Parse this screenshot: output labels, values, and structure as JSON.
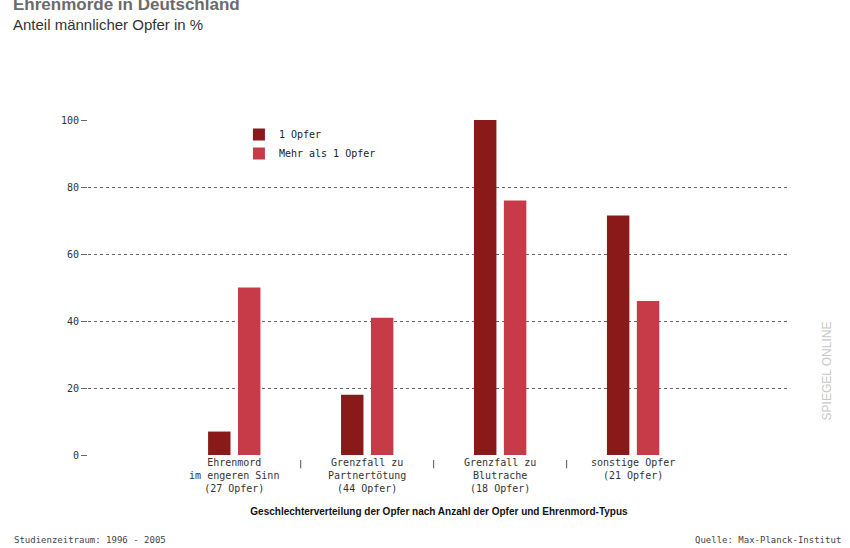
{
  "chart_data": {
    "type": "bar",
    "title": "Ehrenmorde in Deutschland",
    "subtitle": "Anteil männlicher Opfer in %",
    "x_label": "Geschlechterverteilung der Opfer nach Anzahl der Opfer und Ehrenmord-Typus",
    "categories": [
      "Ehrenmord\nim engeren Sinn\n(27 Opfer)",
      "Grenzfall zu\nPartnertötung\n(44 Opfer)",
      "Grenzfall zu\nBlutrache\n(18 Opfer)",
      "sonstige Opfer\n(21 Opfer)"
    ],
    "series": [
      {
        "name": "1 Opfer",
        "color": "#8a1a1a",
        "values": [
          7,
          18,
          100,
          71.5
        ]
      },
      {
        "name": "Mehr als 1 Opfer",
        "color": "#c73a48",
        "values": [
          50,
          41,
          76,
          46
        ]
      }
    ],
    "ylim": [
      0,
      100
    ],
    "yticks": [
      0,
      20,
      40,
      60,
      80,
      100
    ],
    "grid": true,
    "legend": "top left",
    "note": "Studienzeitraum: 1996 - 2005",
    "source": "Quelle: Max-Planck-Institut",
    "watermark": "SPIEGEL ONLINE"
  }
}
